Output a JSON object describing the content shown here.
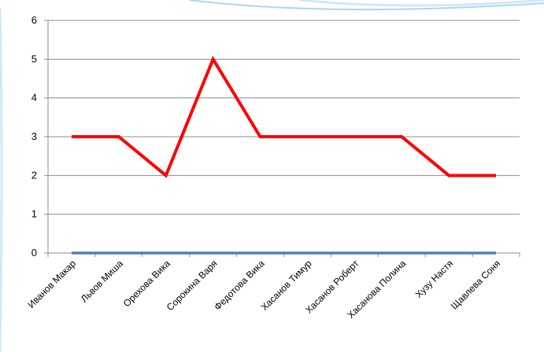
{
  "chart_data": {
    "type": "line",
    "categories": [
      "Иванов Макар",
      "Львов Миша",
      "Орехова Вика",
      "Сорокина Варя",
      "Федотова Вика",
      "Хасанов Тимур",
      "Хасанов Роберт",
      "Хасанова Полина",
      "Хузу Настя",
      "Щавлева Соня"
    ],
    "series": [
      {
        "values": [
          3,
          3,
          2,
          5,
          3,
          3,
          3,
          3,
          2,
          2
        ],
        "color": "#ff0000"
      },
      {
        "values": [
          0,
          0,
          0,
          0,
          0,
          0,
          0,
          0,
          0,
          0
        ],
        "color": "#4f81bd"
      }
    ],
    "yticks": [
      "0",
      "1",
      "2",
      "3",
      "4",
      "5",
      "6"
    ],
    "ylim": [
      0,
      6
    ],
    "grid": true,
    "legend": "none",
    "title": "",
    "xlabel": "",
    "ylabel": "",
    "colors": {
      "axis": "#8c8c8c",
      "grid": "#8c8c8c",
      "decoration": "#bfe3f7"
    }
  }
}
